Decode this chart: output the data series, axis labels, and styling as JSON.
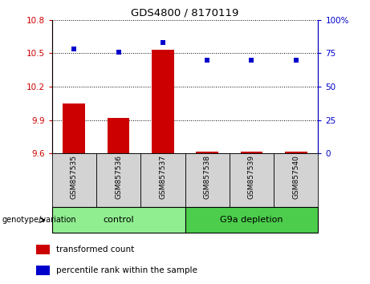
{
  "title": "GDS4800 / 8170119",
  "samples": [
    "GSM857535",
    "GSM857536",
    "GSM857537",
    "GSM857538",
    "GSM857539",
    "GSM857540"
  ],
  "transformed_counts": [
    10.05,
    9.92,
    10.53,
    9.615,
    9.612,
    9.614
  ],
  "percentile_ranks": [
    78,
    76,
    83,
    70,
    70,
    70
  ],
  "ylim_left": [
    9.6,
    10.8
  ],
  "ylim_right": [
    0,
    100
  ],
  "yticks_left": [
    9.6,
    9.9,
    10.2,
    10.5,
    10.8
  ],
  "yticks_right": [
    0,
    25,
    50,
    75,
    100
  ],
  "ytick_labels_left": [
    "9.6",
    "9.9",
    "10.2",
    "10.5",
    "10.8"
  ],
  "ytick_labels_right": [
    "0",
    "25",
    "50",
    "75",
    "100%"
  ],
  "bar_color": "#cc0000",
  "scatter_color": "#0000cc",
  "bar_baseline": 9.6,
  "groups": [
    {
      "label": "control",
      "spans": [
        0,
        3
      ],
      "color": "#90ee90"
    },
    {
      "label": "G9a depletion",
      "spans": [
        3,
        6
      ],
      "color": "#4cce4c"
    }
  ],
  "group_label_prefix": "genotype/variation",
  "legend_items": [
    {
      "label": "transformed count",
      "color": "#cc0000"
    },
    {
      "label": "percentile rank within the sample",
      "color": "#0000cc"
    }
  ],
  "xticklabel_bg": "#d3d3d3",
  "grid_linestyle": "dotted"
}
